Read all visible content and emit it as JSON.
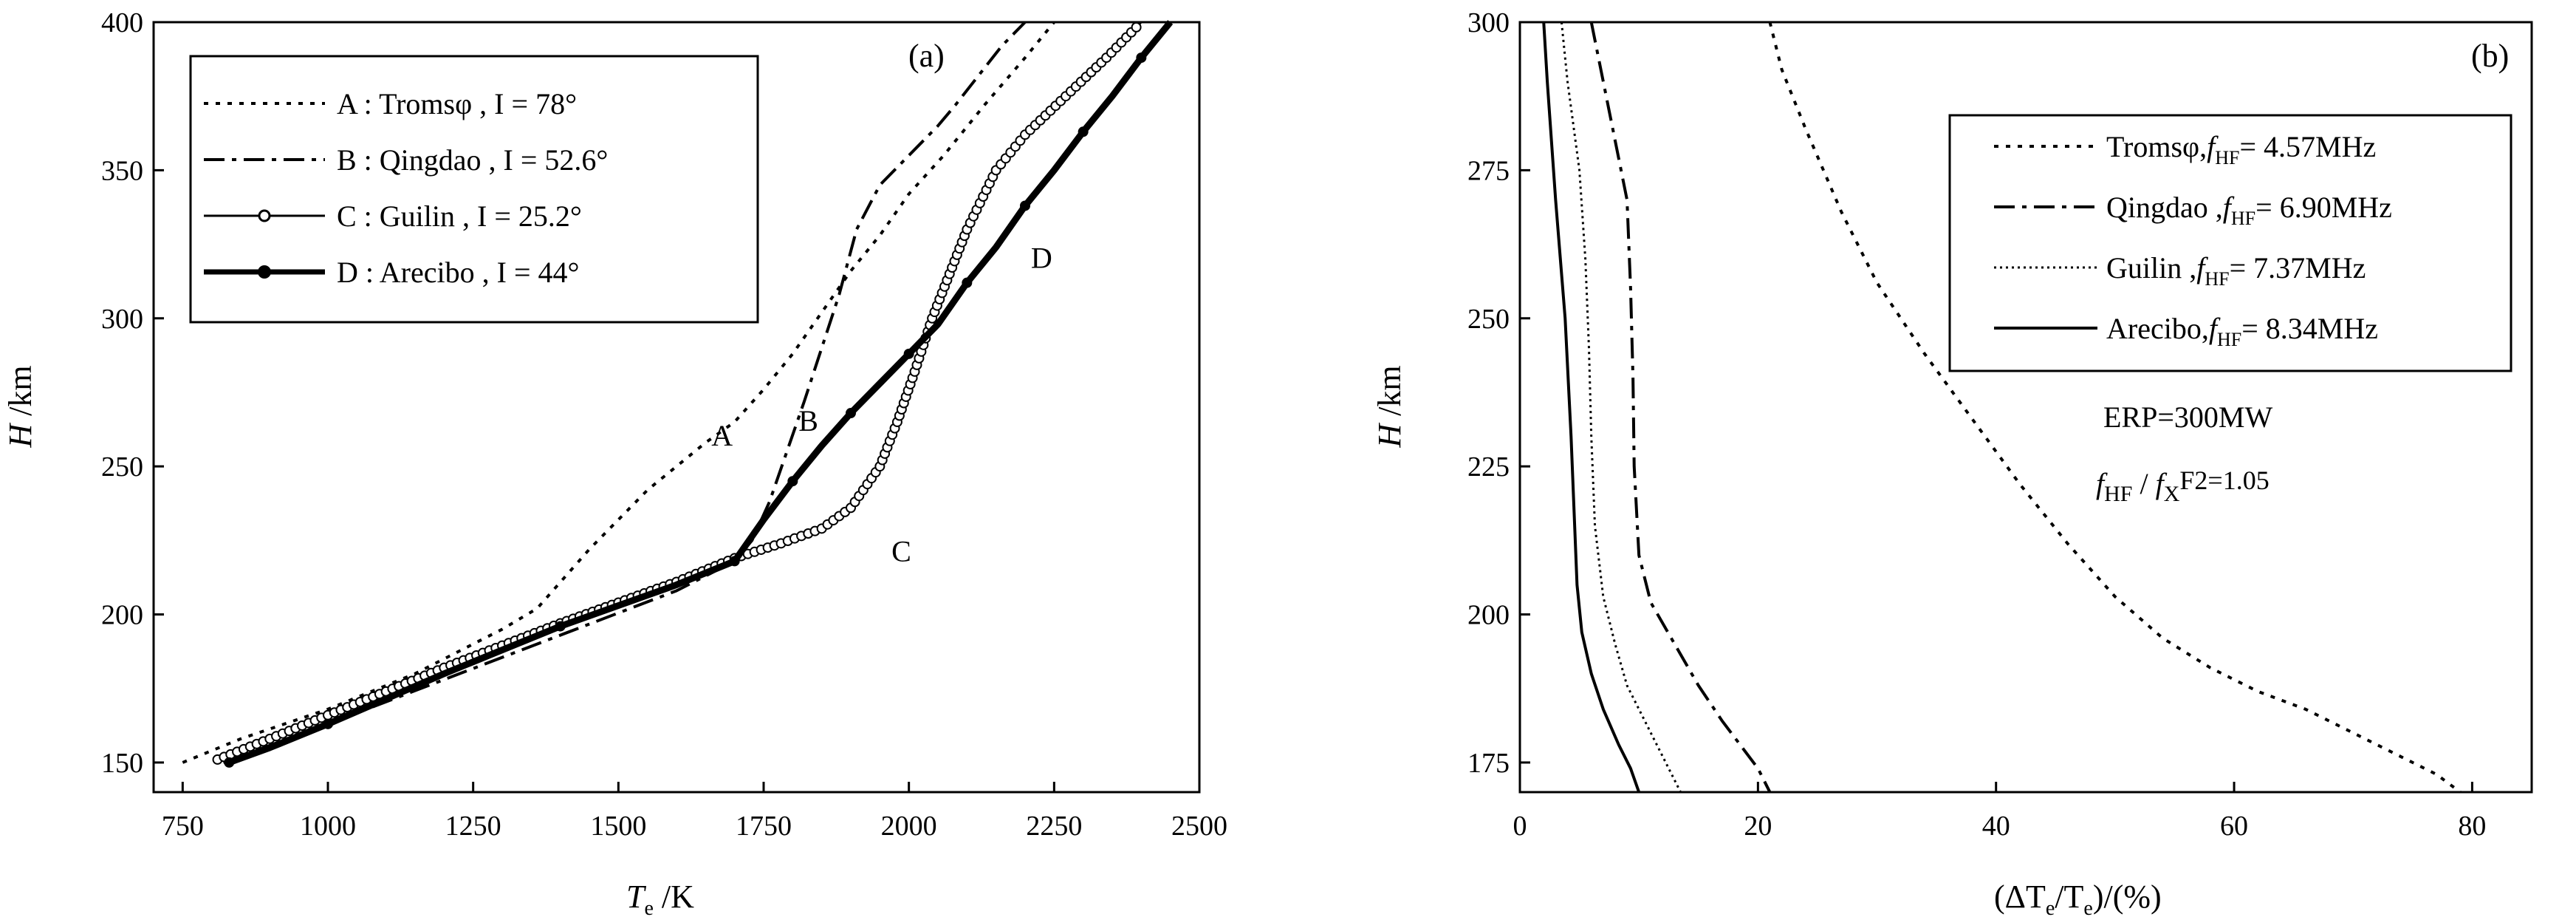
{
  "chart_data": [
    {
      "panel": "(a)",
      "type": "line",
      "xlabel": "T",
      "xlabel_sub": "e",
      "xlabel_unit": " /K",
      "ylabel": "H",
      "ylabel_unit": " /km",
      "xlim": [
        700,
        2500
      ],
      "ylim": [
        140,
        400
      ],
      "xticks": [
        750,
        1000,
        1250,
        1500,
        1750,
        2000,
        2250,
        2500
      ],
      "yticks": [
        150,
        200,
        250,
        300,
        350,
        400
      ],
      "grid": false,
      "legend_position": "top-left",
      "series": [
        {
          "name": "A : Tromsφ , I = 78°",
          "style": "dotted",
          "x": [
            750,
            850,
            1000,
            1150,
            1300,
            1360,
            1450,
            1550,
            1650,
            1700,
            1750,
            1800,
            1850,
            1900,
            1950,
            2000,
            2060,
            2130,
            2200,
            2250
          ],
          "y": [
            150,
            158,
            168,
            180,
            195,
            202,
            222,
            242,
            258,
            265,
            276,
            288,
            302,
            316,
            328,
            342,
            355,
            372,
            388,
            400
          ]
        },
        {
          "name": "B : Qingdao , I = 52.6°",
          "style": "dashdot",
          "x": [
            820,
            1000,
            1200,
            1400,
            1600,
            1700,
            1730,
            1760,
            1790,
            1820,
            1850,
            1880,
            1910,
            1950,
            2000,
            2050,
            2080,
            2120,
            2160,
            2200
          ],
          "y": [
            150,
            163,
            178,
            193,
            208,
            218,
            225,
            238,
            255,
            272,
            290,
            308,
            330,
            345,
            355,
            365,
            372,
            382,
            392,
            400
          ]
        },
        {
          "name": "C : Guilin , I = 25.2°",
          "style": "circles",
          "x": [
            810,
            900,
            1000,
            1200,
            1400,
            1600,
            1700,
            1780,
            1850,
            1900,
            1950,
            1980,
            2010,
            2040,
            2070,
            2100,
            2150,
            2200,
            2270,
            2340,
            2400
          ],
          "y": [
            151,
            158,
            166,
            182,
            197,
            211,
            219,
            224,
            229,
            236,
            250,
            265,
            282,
            300,
            315,
            330,
            350,
            362,
            375,
            388,
            400
          ]
        },
        {
          "name": "D : Arecibo , I = 44°",
          "style": "solid-dots",
          "x": [
            830,
            900,
            1000,
            1200,
            1400,
            1600,
            1700,
            1750,
            1800,
            1850,
            1900,
            1950,
            2000,
            2050,
            2100,
            2150,
            2200,
            2250,
            2300,
            2350,
            2400,
            2450
          ],
          "y": [
            150,
            155,
            163,
            180,
            196,
            210,
            218,
            232,
            245,
            257,
            268,
            278,
            288,
            298,
            312,
            324,
            338,
            350,
            363,
            375,
            388,
            400
          ]
        }
      ],
      "annotations": [
        {
          "text": "A",
          "x": 1660,
          "y": 257
        },
        {
          "text": "B",
          "x": 1810,
          "y": 262
        },
        {
          "text": "C",
          "x": 1970,
          "y": 218
        },
        {
          "text": "D",
          "x": 2210,
          "y": 317
        }
      ]
    },
    {
      "panel": "(b)",
      "type": "line",
      "xlabel": "(ΔT",
      "xlabel_sub": "e",
      "xlabel_mid": "/T",
      "xlabel_sub2": "e",
      "xlabel_unit": ")/(%)",
      "ylabel": "H",
      "ylabel_unit": " /km",
      "xlim": [
        0,
        85
      ],
      "ylim": [
        170,
        300
      ],
      "xticks": [
        0,
        20,
        40,
        60,
        80
      ],
      "yticks": [
        175,
        200,
        225,
        250,
        275,
        300
      ],
      "grid": false,
      "legend_position": "top-right",
      "series": [
        {
          "name": "Tromsφ,",
          "f_label": "f",
          "f_sub": "HF",
          "f_value": "= 4.57MHz",
          "style": "dotted",
          "x": [
            21,
            22,
            24,
            27,
            30,
            34,
            38,
            42,
            46,
            50,
            54,
            58,
            62,
            66,
            70,
            74,
            77,
            79
          ],
          "y": [
            300,
            292,
            282,
            268,
            256,
            244,
            233,
            222,
            212,
            203,
            196,
            191,
            187,
            184,
            180,
            176,
            173,
            170
          ]
        },
        {
          "name": "Qingdao ,",
          "f_label": "f",
          "f_sub": "HF",
          "f_value": "= 6.90MHz",
          "style": "dashdot",
          "x": [
            6,
            7,
            8,
            9,
            9.3,
            9.5,
            9.6,
            10,
            11,
            13,
            15,
            17,
            18.5,
            20,
            21
          ],
          "y": [
            300,
            290,
            280,
            270,
            255,
            240,
            225,
            210,
            202,
            195,
            188,
            182,
            178,
            174,
            170
          ]
        },
        {
          "name": "Guilin ,",
          "f_label": "f",
          "f_sub": "HF",
          "f_value": "= 7.37MHz",
          "style": "finedot",
          "x": [
            3.5,
            4,
            5,
            5.5,
            5.8,
            6,
            6.3,
            7,
            8,
            9,
            10.5,
            12,
            13.5
          ],
          "y": [
            300,
            290,
            275,
            260,
            245,
            230,
            215,
            203,
            195,
            188,
            182,
            176,
            170
          ]
        },
        {
          "name": "Arecibo,",
          "f_label": "f",
          "f_sub": "HF",
          "f_value": "= 8.34MHz",
          "style": "solid",
          "x": [
            2,
            2.3,
            3,
            3.8,
            4.3,
            4.6,
            4.8,
            5.2,
            6,
            7,
            8.3,
            9.3,
            10
          ],
          "y": [
            300,
            290,
            270,
            250,
            230,
            215,
            205,
            197,
            190,
            184,
            178,
            174,
            170
          ]
        }
      ],
      "annotations": [
        {
          "text": "ERP=300MW"
        },
        {
          "text_f1": "f",
          "sub1": "HF",
          "text_mid": " / ",
          "text_f2": "f",
          "sub2": "X",
          "text_end": "F2=1.05"
        }
      ]
    }
  ]
}
